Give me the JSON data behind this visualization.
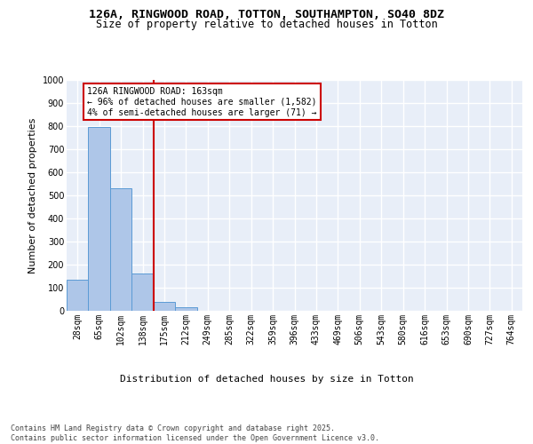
{
  "title_line1": "126A, RINGWOOD ROAD, TOTTON, SOUTHAMPTON, SO40 8DZ",
  "title_line2": "Size of property relative to detached houses in Totton",
  "xlabel": "Distribution of detached houses by size in Totton",
  "ylabel": "Number of detached properties",
  "categories": [
    "28sqm",
    "65sqm",
    "102sqm",
    "138sqm",
    "175sqm",
    "212sqm",
    "249sqm",
    "285sqm",
    "322sqm",
    "359sqm",
    "396sqm",
    "433sqm",
    "469sqm",
    "506sqm",
    "543sqm",
    "580sqm",
    "616sqm",
    "653sqm",
    "690sqm",
    "727sqm",
    "764sqm"
  ],
  "values": [
    135,
    795,
    530,
    162,
    37,
    14,
    0,
    0,
    0,
    0,
    0,
    0,
    0,
    0,
    0,
    0,
    0,
    0,
    0,
    0,
    0
  ],
  "bar_color": "#aec6e8",
  "bar_edge_color": "#5b9bd5",
  "vline_position": 3.5,
  "vline_color": "#cc0000",
  "annotation_text": "126A RINGWOOD ROAD: 163sqm\n← 96% of detached houses are smaller (1,582)\n4% of semi-detached houses are larger (71) →",
  "annotation_box_facecolor": "#ffffff",
  "annotation_box_edgecolor": "#cc0000",
  "ylim": [
    0,
    1000
  ],
  "yticks": [
    0,
    100,
    200,
    300,
    400,
    500,
    600,
    700,
    800,
    900,
    1000
  ],
  "plot_bg_color": "#e8eef8",
  "grid_color": "#ffffff",
  "footnote": "Contains HM Land Registry data © Crown copyright and database right 2025.\nContains public sector information licensed under the Open Government Licence v3.0.",
  "title_fontsize": 9.5,
  "subtitle_fontsize": 8.5,
  "axis_label_fontsize": 8,
  "tick_fontsize": 7,
  "annotation_fontsize": 7,
  "footnote_fontsize": 6
}
